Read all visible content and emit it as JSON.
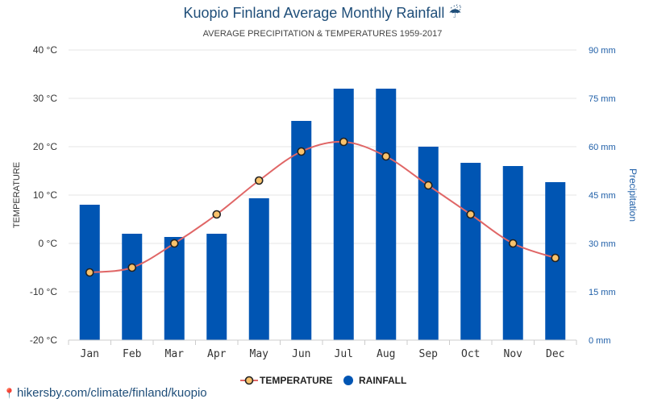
{
  "page": {
    "title": "Kuopio Finland Average Monthly Rainfall",
    "title_icon": "umbrella-rain-icon",
    "subtitle": "AVERAGE PRECIPITATION & TEMPERATURES 1959-2017",
    "footer_link": "hikersby.com/climate/finland/kuopio"
  },
  "chart_data": {
    "type": "bar",
    "title": "Kuopio Finland Average Monthly Rainfall",
    "subtitle": "AVERAGE PRECIPITATION & TEMPERATURES 1959-2017",
    "categories": [
      "Jan",
      "Feb",
      "Mar",
      "Apr",
      "May",
      "Jun",
      "Jul",
      "Aug",
      "Sep",
      "Oct",
      "Nov",
      "Dec"
    ],
    "series": [
      {
        "name": "RAINFALL",
        "type": "bar",
        "axis": "right",
        "unit": "mm",
        "color": "#0055b3",
        "values": [
          42,
          33,
          32,
          33,
          44,
          68,
          78,
          78,
          60,
          55,
          54,
          49
        ]
      },
      {
        "name": "TEMPERATURE",
        "type": "line",
        "axis": "left",
        "unit": "°C",
        "color": "#e06666",
        "marker_fill": "#f9c26b",
        "values": [
          -6,
          -5,
          0,
          6,
          13,
          19,
          21,
          18,
          12,
          6,
          0,
          -3
        ]
      }
    ],
    "y_left": {
      "label": "TEMPERATURE",
      "range": [
        -20,
        40
      ],
      "ticks": [
        "-20 °C",
        "-10 °C",
        "0 °C",
        "10 °C",
        "20 °C",
        "30 °C",
        "40 °C"
      ]
    },
    "y_right": {
      "label": "Precipitation",
      "range": [
        0,
        90
      ],
      "ticks": [
        "0 mm",
        "15 mm",
        "30 mm",
        "45 mm",
        "60 mm",
        "75 mm",
        "90 mm"
      ]
    },
    "grid": true,
    "legend": {
      "placement": "bottom-center",
      "items": [
        "TEMPERATURE",
        "RAINFALL"
      ]
    }
  }
}
